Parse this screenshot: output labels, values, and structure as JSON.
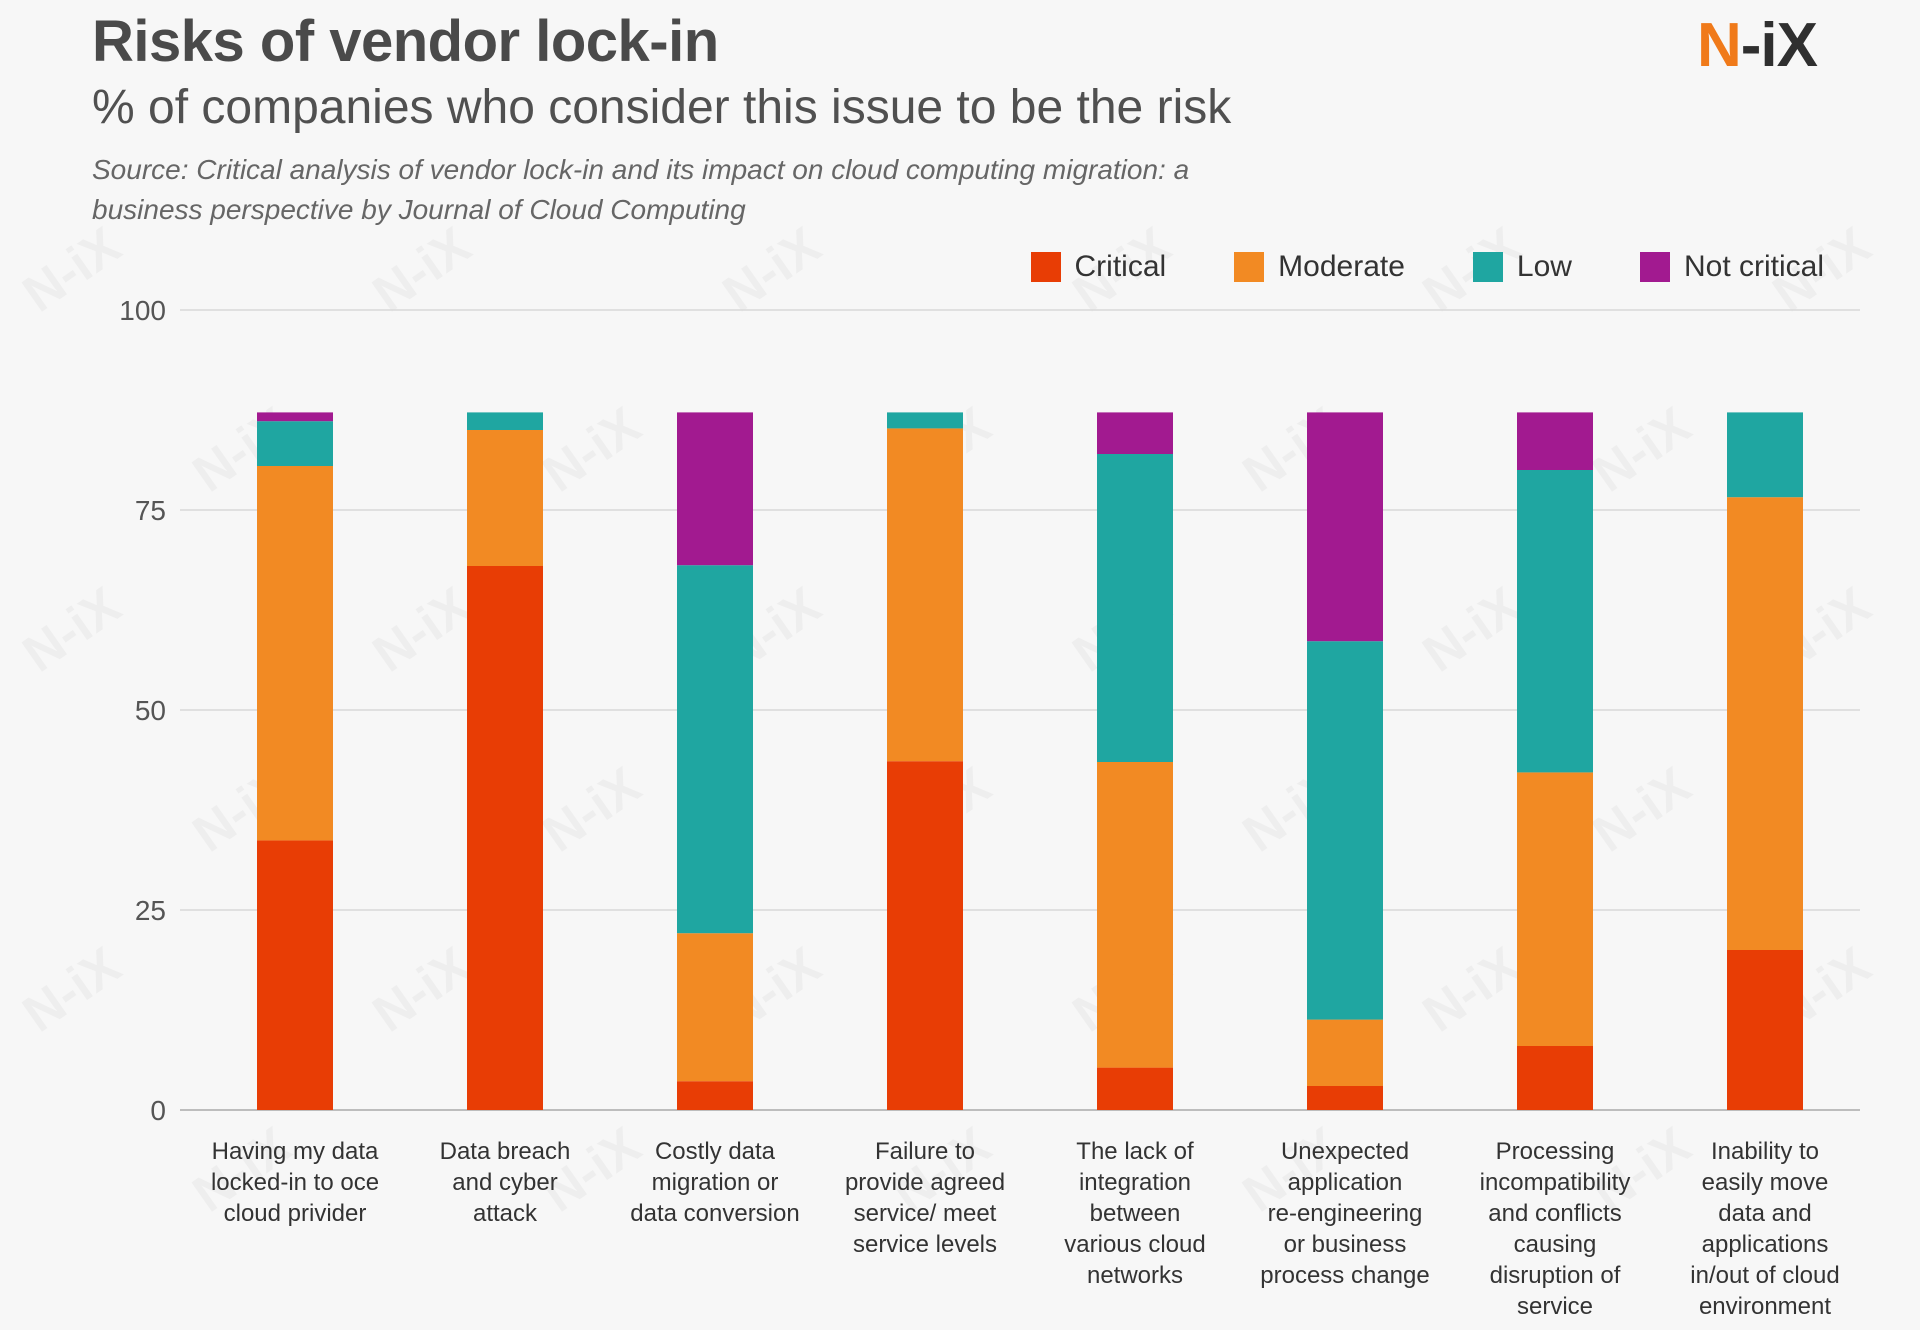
{
  "header": {
    "title": "Risks of vendor lock-in",
    "subtitle": "% of companies who consider this issue to be the risk",
    "source": "Source: Critical analysis of vendor lock-in and its impact on cloud computing migration: a business perspective by Journal of Cloud Computing"
  },
  "logo": {
    "part1": "N",
    "part2": "-iX"
  },
  "chart_data": {
    "type": "bar",
    "stacked": true,
    "title": "Risks of vendor lock-in",
    "subtitle": "% of companies who consider this issue to be the risk",
    "xlabel": "",
    "ylabel": "",
    "ylim": [
      0,
      100
    ],
    "yticks": [
      0,
      25,
      50,
      75,
      100
    ],
    "grid": true,
    "legend_position": "top-right",
    "categories": [
      "Having my data locked-in to oce cloud privider",
      "Data breach and cyber attack",
      "Costly data migration or data conversion",
      "Failure to provide agreed service/ meet service levels",
      "The lack of integration between various cloud networks",
      "Unexpected application re-engineering or business process change",
      "Processing incompatibility and conflicts causing disruption of service",
      "Inability to easily move data and applications in/out of cloud environment"
    ],
    "category_lines": [
      [
        "Having my data",
        "locked-in to oce",
        "cloud privider"
      ],
      [
        "Data breach",
        "and cyber",
        "attack"
      ],
      [
        "Costly data",
        "migration or",
        "data conversion"
      ],
      [
        "Failure to",
        "provide agreed",
        "service/ meet",
        "service levels"
      ],
      [
        "The lack of",
        "integration",
        "between",
        "various cloud",
        "networks"
      ],
      [
        "Unexpected",
        "application",
        "re-engineering",
        "or business",
        "process change"
      ],
      [
        "Processing",
        "incompatibility",
        "and conflicts",
        "causing",
        "disruption of",
        "service"
      ],
      [
        "Inability to",
        "easily move",
        "data and",
        "applications",
        "in/out of cloud",
        "environment"
      ]
    ],
    "series": [
      {
        "name": "Critical",
        "color": "#e83d05",
        "values": [
          33.7,
          68.0,
          3.6,
          43.6,
          5.3,
          3.0,
          8.0,
          20.0
        ]
      },
      {
        "name": "Moderate",
        "color": "#f28a23",
        "values": [
          46.8,
          17.0,
          18.5,
          41.6,
          38.2,
          8.3,
          34.2,
          56.6
        ]
      },
      {
        "name": "Low",
        "color": "#1fa6a1",
        "values": [
          5.6,
          2.2,
          46.0,
          2.0,
          38.5,
          47.3,
          37.8,
          10.6
        ]
      },
      {
        "name": "Not critical",
        "color": "#a21a90",
        "values": [
          1.1,
          0.0,
          19.1,
          0.0,
          5.2,
          28.6,
          7.2,
          0.0
        ]
      }
    ]
  }
}
